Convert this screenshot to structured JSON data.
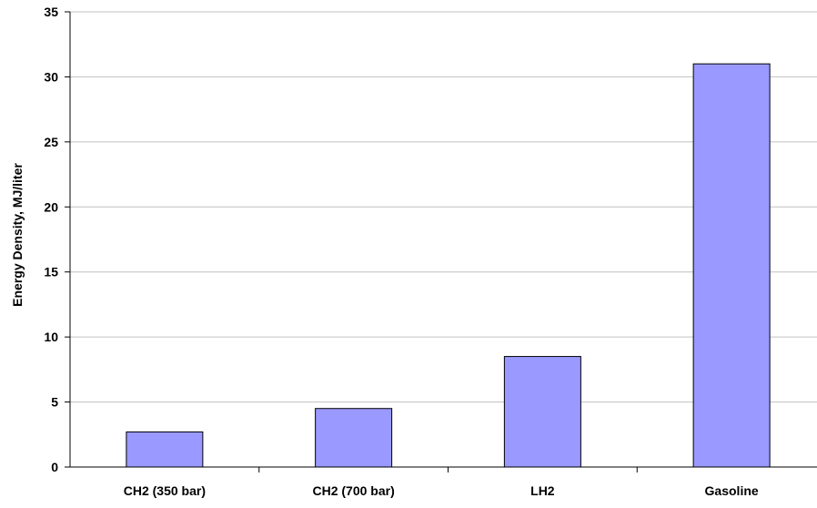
{
  "chart_data": {
    "type": "bar",
    "title": "",
    "xlabel": "",
    "ylabel": "Energy Density, MJ/liter",
    "categories": [
      "CH2 (350 bar)",
      "CH2 (700 bar)",
      "LH2",
      "Gasoline"
    ],
    "values": [
      2.7,
      4.5,
      8.5,
      31
    ],
    "ylim": [
      0,
      35
    ],
    "yticks": [
      "0",
      "5",
      "10",
      "15",
      "20",
      "25",
      "30",
      "35"
    ],
    "grid": true,
    "legend": "none",
    "colors": {
      "bar_fill": "#9999ff",
      "bar_stroke": "#000000",
      "grid": "#c0c0c0",
      "axis": "#000000"
    }
  }
}
